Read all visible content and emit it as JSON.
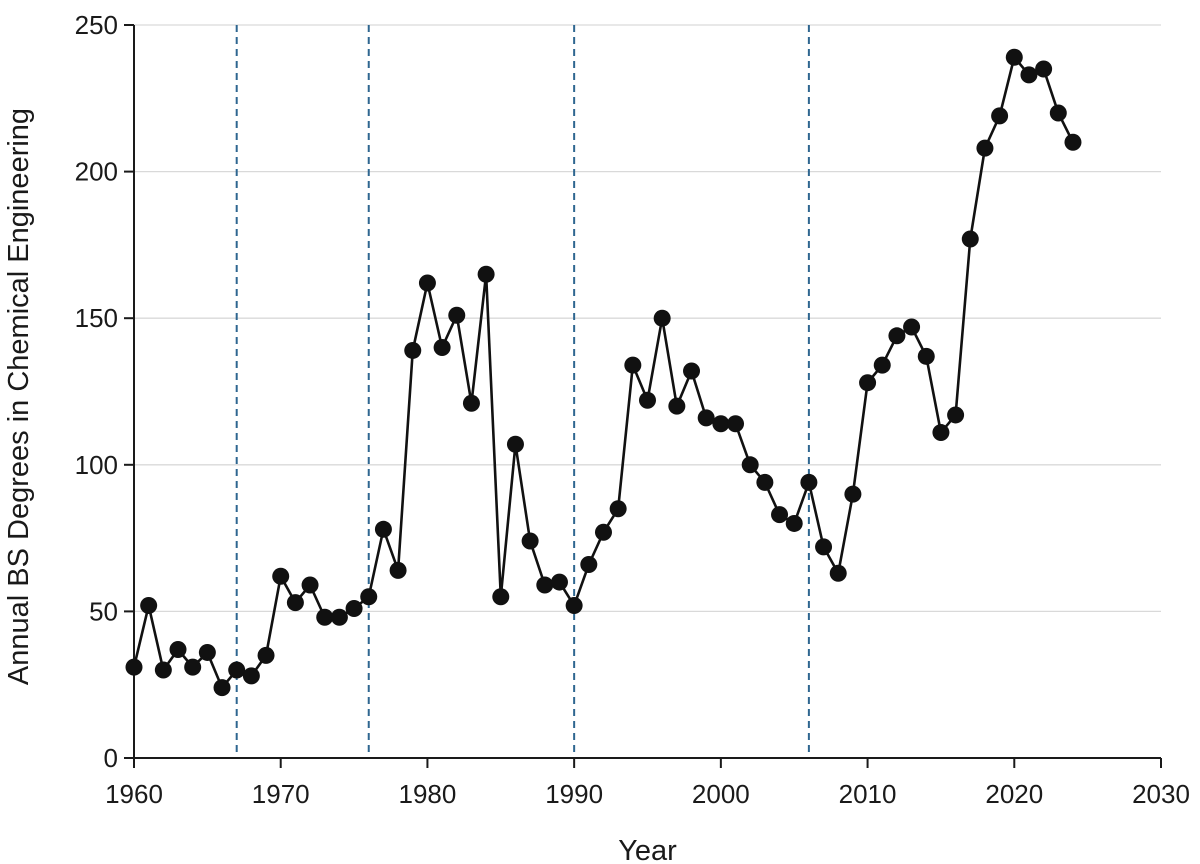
{
  "chart_data": {
    "type": "line",
    "title": "",
    "xlabel": "Year",
    "ylabel": "Annual BS Degrees in Chemical Engineering",
    "xlim": [
      1960,
      2030
    ],
    "ylim": [
      0,
      250
    ],
    "x_ticks": [
      1960,
      1970,
      1980,
      1990,
      2000,
      2010,
      2020,
      2030
    ],
    "y_ticks": [
      0,
      50,
      100,
      150,
      200,
      250
    ],
    "grid": "horizontal",
    "reference_lines_x": [
      1967,
      1976,
      1990,
      2006
    ],
    "reference_line_style": "dashed",
    "series": [
      {
        "x": [
          1960,
          1961,
          1962,
          1963,
          1964,
          1965,
          1966,
          1967,
          1968,
          1969,
          1970,
          1971,
          1972,
          1973,
          1974,
          1975,
          1976,
          1977,
          1978,
          1979,
          1980,
          1981,
          1982,
          1983,
          1984,
          1985,
          1986,
          1987,
          1988,
          1989,
          1990,
          1991,
          1992,
          1993,
          1994,
          1995,
          1996,
          1997,
          1998,
          1999,
          2000,
          2001,
          2002,
          2003,
          2004,
          2005,
          2006,
          2007,
          2008,
          2009,
          2010,
          2011,
          2012,
          2013,
          2014,
          2015,
          2016,
          2017,
          2018,
          2019,
          2020,
          2021,
          2022,
          2023,
          2024
        ],
        "values": [
          31,
          52,
          30,
          37,
          31,
          36,
          24,
          30,
          28,
          35,
          62,
          53,
          59,
          48,
          48,
          51,
          55,
          78,
          64,
          139,
          162,
          140,
          151,
          121,
          165,
          55,
          107,
          74,
          59,
          60,
          52,
          66,
          77,
          85,
          134,
          122,
          150,
          120,
          132,
          116,
          114,
          114,
          100,
          94,
          83,
          80,
          94,
          72,
          63,
          90,
          128,
          134,
          144,
          147,
          137,
          111,
          117,
          177,
          208,
          219,
          239,
          233,
          235,
          220,
          210
        ]
      }
    ],
    "colors": {
      "line": "#111111",
      "marker": "#111111",
      "reference_line": "#2e6690",
      "grid": "#d9d9d9",
      "axis": "#1a1a1a"
    }
  }
}
